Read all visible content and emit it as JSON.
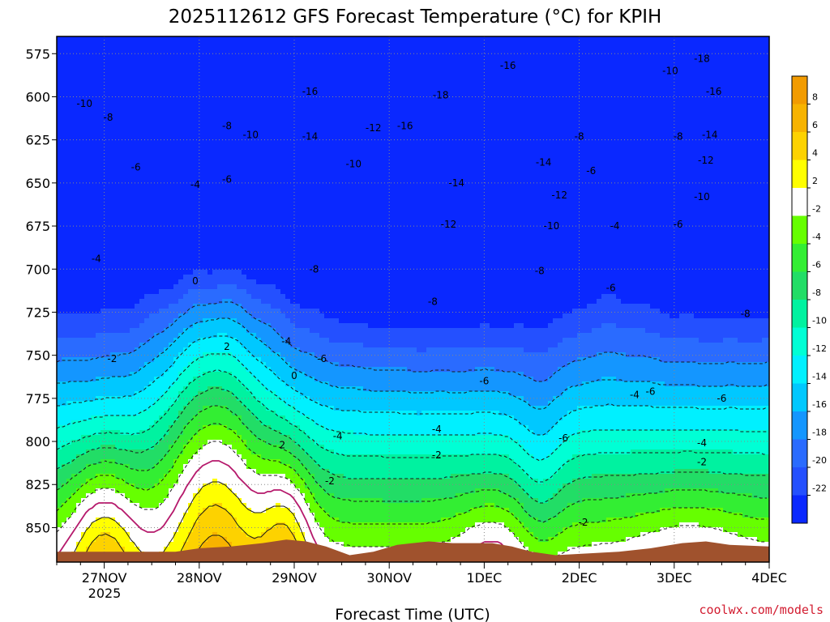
{
  "chart_data": {
    "type": "heatmap",
    "title": "2025112612 GFS Forecast Temperature (°C) for KPIH",
    "xlabel": "Forecast Time (UTC)",
    "ylabel": "",
    "y_axis": {
      "unit": "hPa",
      "range": [
        565,
        870
      ],
      "ticks": [
        575,
        600,
        625,
        650,
        675,
        700,
        725,
        750,
        775,
        800,
        825,
        850
      ],
      "tick_labels": [
        "575",
        "600",
        "625",
        "650",
        "675",
        "700",
        "725",
        "750",
        "775",
        "800",
        "825",
        "850"
      ]
    },
    "x_axis": {
      "unit": "hours since 2025-11-26 12Z",
      "range": [
        0,
        180
      ],
      "ticks": [
        12,
        36,
        60,
        84,
        108,
        132,
        156,
        180
      ],
      "tick_labels": [
        "27NOV",
        "28NOV",
        "29NOV",
        "30NOV",
        "1DEC",
        "2DEC",
        "3DEC",
        "4DEC"
      ],
      "year_label": "2025"
    },
    "colorbar": {
      "bands": [
        {
          "range": [
            8,
            10
          ],
          "color": "#f29b00"
        },
        {
          "range": [
            6,
            8
          ],
          "color": "#f7b300"
        },
        {
          "range": [
            4,
            6
          ],
          "color": "#fdd200"
        },
        {
          "range": [
            2,
            4
          ],
          "color": "#ffff00"
        },
        {
          "range": [
            -2,
            2
          ],
          "color": "#ffffff"
        },
        {
          "range": [
            -4,
            -2
          ],
          "color": "#66ff00"
        },
        {
          "range": [
            -6,
            -4
          ],
          "color": "#33ee33"
        },
        {
          "range": [
            -8,
            -6
          ],
          "color": "#22dd66"
        },
        {
          "range": [
            -10,
            -8
          ],
          "color": "#00f2a0"
        },
        {
          "range": [
            -12,
            -10
          ],
          "color": "#00ffd5"
        },
        {
          "range": [
            -14,
            -12
          ],
          "color": "#00f0ff"
        },
        {
          "range": [
            -16,
            -14
          ],
          "color": "#00c8ff"
        },
        {
          "range": [
            -18,
            -16
          ],
          "color": "#1496ff"
        },
        {
          "range": [
            -20,
            -18
          ],
          "color": "#2a6bff"
        },
        {
          "range": [
            -22,
            -20
          ],
          "color": "#2450ff"
        },
        {
          "range": [
            -24,
            -22
          ],
          "color": "#0a28ff"
        }
      ],
      "tick_labels": [
        "8",
        "6",
        "4",
        "2",
        "-2",
        "-4",
        "-6",
        "-8",
        "-10",
        "-12",
        "-14",
        "-16",
        "-18",
        "-20",
        "-22"
      ]
    },
    "contour_labels": [
      {
        "t": 7,
        "p": 604,
        "text": "-10"
      },
      {
        "t": 13,
        "p": 612,
        "text": "-8"
      },
      {
        "t": 20,
        "p": 641,
        "text": "-6"
      },
      {
        "t": 10,
        "p": 694,
        "text": "-4"
      },
      {
        "t": 14,
        "p": 752,
        "text": "-2"
      },
      {
        "t": 35,
        "p": 651,
        "text": "-4"
      },
      {
        "t": 43,
        "p": 648,
        "text": "-6"
      },
      {
        "t": 43,
        "p": 617,
        "text": "-8"
      },
      {
        "t": 49,
        "p": 622,
        "text": "-10"
      },
      {
        "t": 35,
        "p": 707,
        "text": "0"
      },
      {
        "t": 43,
        "p": 745,
        "text": "2"
      },
      {
        "t": 58,
        "p": 742,
        "text": "-4"
      },
      {
        "t": 60,
        "p": 762,
        "text": "0"
      },
      {
        "t": 57,
        "p": 802,
        "text": "2"
      },
      {
        "t": 69,
        "p": 823,
        "text": "-2"
      },
      {
        "t": 71,
        "p": 797,
        "text": "-4"
      },
      {
        "t": 67,
        "p": 752,
        "text": "-6"
      },
      {
        "t": 65,
        "p": 700,
        "text": "-8"
      },
      {
        "t": 64,
        "p": 623,
        "text": "-14"
      },
      {
        "t": 64,
        "p": 597,
        "text": "-16"
      },
      {
        "t": 75,
        "p": 639,
        "text": "-10"
      },
      {
        "t": 80,
        "p": 618,
        "text": "-12"
      },
      {
        "t": 88,
        "p": 617,
        "text": "-16"
      },
      {
        "t": 97,
        "p": 599,
        "text": "-18"
      },
      {
        "t": 101,
        "p": 650,
        "text": "-14"
      },
      {
        "t": 99,
        "p": 674,
        "text": "-12"
      },
      {
        "t": 95,
        "p": 719,
        "text": "-8"
      },
      {
        "t": 96,
        "p": 793,
        "text": "-4"
      },
      {
        "t": 96,
        "p": 808,
        "text": "-2"
      },
      {
        "t": 108,
        "p": 765,
        "text": "-6"
      },
      {
        "t": 114,
        "p": 582,
        "text": "-16"
      },
      {
        "t": 123,
        "p": 638,
        "text": "-14"
      },
      {
        "t": 127,
        "p": 657,
        "text": "-12"
      },
      {
        "t": 125,
        "p": 675,
        "text": "-10"
      },
      {
        "t": 122,
        "p": 701,
        "text": "-8"
      },
      {
        "t": 132,
        "p": 623,
        "text": "-8"
      },
      {
        "t": 135,
        "p": 643,
        "text": "-6"
      },
      {
        "t": 141,
        "p": 675,
        "text": "-4"
      },
      {
        "t": 140,
        "p": 711,
        "text": "-6"
      },
      {
        "t": 146,
        "p": 773,
        "text": "-4"
      },
      {
        "t": 150,
        "p": 771,
        "text": "-6"
      },
      {
        "t": 128,
        "p": 798,
        "text": "-6"
      },
      {
        "t": 133,
        "p": 847,
        "text": "-2"
      },
      {
        "t": 155,
        "p": 585,
        "text": "-10"
      },
      {
        "t": 163,
        "p": 578,
        "text": "-18"
      },
      {
        "t": 166,
        "p": 597,
        "text": "-16"
      },
      {
        "t": 165,
        "p": 622,
        "text": "-14"
      },
      {
        "t": 164,
        "p": 637,
        "text": "-12"
      },
      {
        "t": 163,
        "p": 658,
        "text": "-10"
      },
      {
        "t": 157,
        "p": 623,
        "text": "-8"
      },
      {
        "t": 157,
        "p": 674,
        "text": "-6"
      },
      {
        "t": 174,
        "p": 726,
        "text": "-8"
      },
      {
        "t": 168,
        "p": 775,
        "text": "-6"
      },
      {
        "t": 163,
        "p": 801,
        "text": "-4"
      },
      {
        "t": 163,
        "p": 812,
        "text": "-2"
      }
    ],
    "grid": true
  },
  "credit": "coolwx.com/models"
}
